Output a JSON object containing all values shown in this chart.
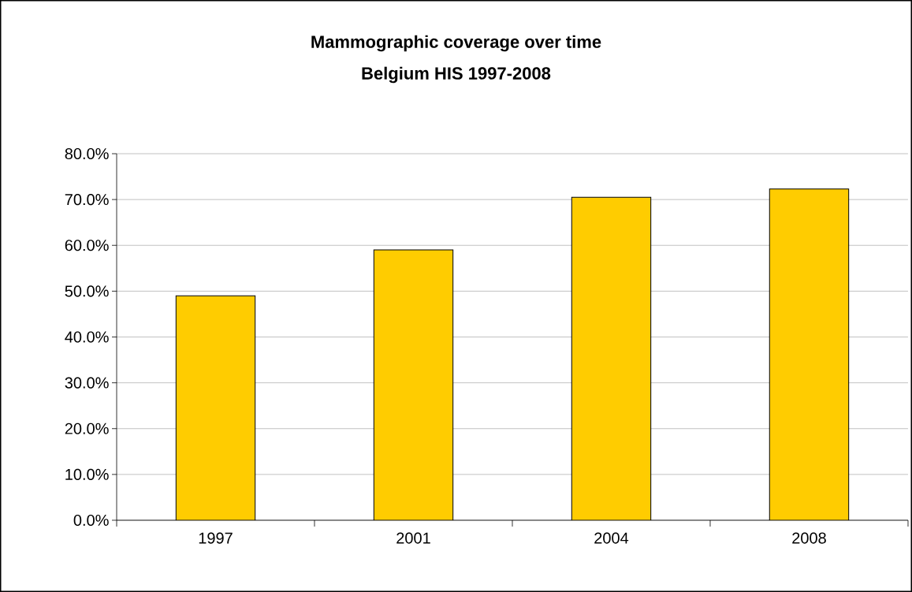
{
  "chart_data": {
    "type": "bar",
    "title": "Mammographic coverage over time",
    "subtitle": "Belgium HIS 1997-2008",
    "categories": [
      "1997",
      "2001",
      "2004",
      "2008"
    ],
    "values": [
      49.0,
      59.0,
      70.5,
      72.3
    ],
    "color": "#ffcc00",
    "ylim": [
      0,
      80
    ],
    "yticks": [
      {
        "value": 0,
        "label": "0.0%"
      },
      {
        "value": 10,
        "label": "10.0%"
      },
      {
        "value": 20,
        "label": "20.0%"
      },
      {
        "value": 30,
        "label": "30.0%"
      },
      {
        "value": 40,
        "label": "40.0%"
      },
      {
        "value": 50,
        "label": "50.0%"
      },
      {
        "value": 60,
        "label": "60.0%"
      },
      {
        "value": 70,
        "label": "70.0%"
      },
      {
        "value": 80,
        "label": "80.0%"
      }
    ],
    "grid": "y"
  }
}
